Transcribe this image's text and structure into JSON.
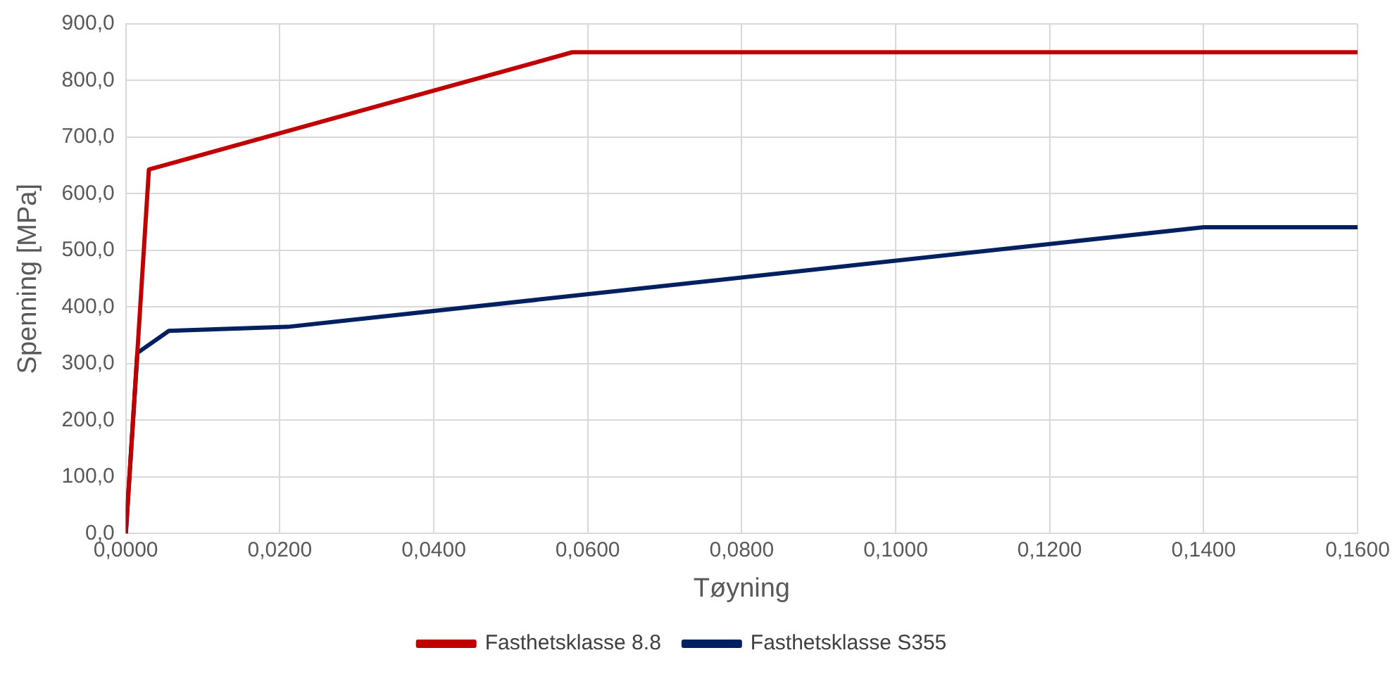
{
  "chart_data": {
    "type": "line",
    "xlabel": "Tøyning",
    "ylabel": "Spenning [MPa]",
    "series": [
      {
        "name": "Fasthetsklasse 8.8",
        "color": "#c00000",
        "x": [
          0,
          0.0015,
          0.003,
          0.058,
          0.16
        ],
        "values": [
          0,
          320,
          643,
          850,
          850
        ]
      },
      {
        "name": "Fasthetsklasse S355",
        "color": "#002060",
        "x": [
          0,
          0.0015,
          0.0056,
          0.021,
          0.14,
          0.16
        ],
        "values": [
          0,
          319,
          358,
          365,
          541,
          541
        ]
      }
    ],
    "xlim": [
      0,
      0.16
    ],
    "xticks": [
      {
        "value": 0,
        "label": "0,0000"
      },
      {
        "value": 0.02,
        "label": "0,0200"
      },
      {
        "value": 0.04,
        "label": "0,0400"
      },
      {
        "value": 0.06,
        "label": "0,0600"
      },
      {
        "value": 0.08,
        "label": "0,0800"
      },
      {
        "value": 0.1,
        "label": "0,1000"
      },
      {
        "value": 0.12,
        "label": "0,1200"
      },
      {
        "value": 0.14,
        "label": "0,1400"
      },
      {
        "value": 0.16,
        "label": "0,1600"
      }
    ],
    "ylim": [
      0,
      900
    ],
    "yticks": [
      {
        "value": 0,
        "label": "0,0"
      },
      {
        "value": 100,
        "label": "100,0"
      },
      {
        "value": 200,
        "label": "200,0"
      },
      {
        "value": 300,
        "label": "300,0"
      },
      {
        "value": 400,
        "label": "400,0"
      },
      {
        "value": 500,
        "label": "500,0"
      },
      {
        "value": 600,
        "label": "600,0"
      },
      {
        "value": 700,
        "label": "700,0"
      },
      {
        "value": 800,
        "label": "800,0"
      },
      {
        "value": 900,
        "label": "900,0"
      }
    ],
    "grid": true,
    "legend": "bottom",
    "marker": "none",
    "line_style": "solid"
  }
}
